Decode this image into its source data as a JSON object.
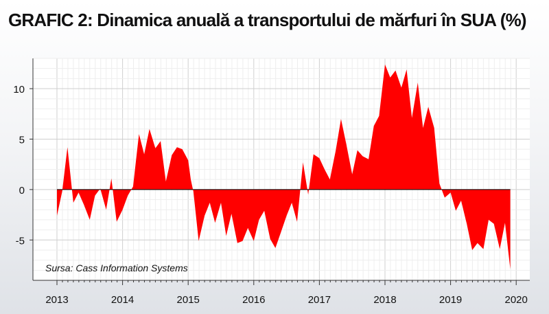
{
  "title": "GRAFIC 2: Dinamica anuală a transportului de mărfuri în SUA (%)",
  "source_note": "Sursa: Cass Information Systems",
  "chart_data": {
    "type": "area",
    "title": "GRAFIC 2: Dinamica anuală a transportului de mărfuri în SUA (%)",
    "xlabel": "",
    "ylabel": "",
    "x_tick_labels": [
      "2013",
      "2014",
      "2015",
      "2016",
      "2017",
      "2018",
      "2019",
      "2020"
    ],
    "y_tick_labels": [
      "10",
      "5",
      "0",
      "-5"
    ],
    "y_ticks": [
      10,
      5,
      0,
      -5
    ],
    "xlim": [
      2013,
      2020
    ],
    "ylim": [
      -9,
      13
    ],
    "grid": true,
    "legend": "none",
    "fill_color": "#ff0000",
    "series": [
      {
        "values": [
          [
            2013.0,
            -2.6
          ],
          [
            2013.08,
            -0.2
          ],
          [
            2013.16,
            4.2
          ],
          [
            2013.25,
            -1.3
          ],
          [
            2013.33,
            -0.3
          ],
          [
            2013.41,
            -1.5
          ],
          [
            2013.5,
            -3.0
          ],
          [
            2013.58,
            -0.6
          ],
          [
            2013.66,
            0.1
          ],
          [
            2013.75,
            -2.0
          ],
          [
            2013.83,
            1.1
          ],
          [
            2013.91,
            -3.2
          ],
          [
            2014.0,
            -2.0
          ],
          [
            2014.08,
            -0.6
          ],
          [
            2014.16,
            0.3
          ],
          [
            2014.25,
            5.5
          ],
          [
            2014.33,
            3.5
          ],
          [
            2014.41,
            6.0
          ],
          [
            2014.5,
            4.1
          ],
          [
            2014.58,
            4.8
          ],
          [
            2014.66,
            0.8
          ],
          [
            2014.75,
            3.4
          ],
          [
            2014.83,
            4.2
          ],
          [
            2014.91,
            4.0
          ],
          [
            2015.0,
            2.9
          ],
          [
            2015.04,
            1.0
          ],
          [
            2015.08,
            -0.2
          ],
          [
            2015.16,
            -5.1
          ],
          [
            2015.25,
            -2.6
          ],
          [
            2015.33,
            -1.3
          ],
          [
            2015.41,
            -3.3
          ],
          [
            2015.5,
            -1.3
          ],
          [
            2015.58,
            -4.6
          ],
          [
            2015.66,
            -2.4
          ],
          [
            2015.75,
            -5.3
          ],
          [
            2015.83,
            -5.1
          ],
          [
            2015.91,
            -3.8
          ],
          [
            2016.0,
            -5.1
          ],
          [
            2016.08,
            -3.0
          ],
          [
            2016.16,
            -2.1
          ],
          [
            2016.25,
            -4.9
          ],
          [
            2016.33,
            -5.8
          ],
          [
            2016.41,
            -4.3
          ],
          [
            2016.5,
            -2.6
          ],
          [
            2016.58,
            -1.3
          ],
          [
            2016.66,
            -3.2
          ],
          [
            2016.75,
            2.7
          ],
          [
            2016.83,
            -0.5
          ],
          [
            2016.91,
            3.5
          ],
          [
            2017.0,
            3.1
          ],
          [
            2017.08,
            2.0
          ],
          [
            2017.16,
            1.0
          ],
          [
            2017.25,
            3.9
          ],
          [
            2017.33,
            7.0
          ],
          [
            2017.41,
            4.5
          ],
          [
            2017.5,
            1.5
          ],
          [
            2017.58,
            3.9
          ],
          [
            2017.66,
            3.3
          ],
          [
            2017.75,
            3.0
          ],
          [
            2017.83,
            6.3
          ],
          [
            2017.91,
            7.3
          ],
          [
            2018.0,
            12.4
          ],
          [
            2018.08,
            11.1
          ],
          [
            2018.16,
            11.8
          ],
          [
            2018.25,
            10.1
          ],
          [
            2018.33,
            11.9
          ],
          [
            2018.41,
            7.1
          ],
          [
            2018.5,
            10.6
          ],
          [
            2018.58,
            6.1
          ],
          [
            2018.66,
            8.2
          ],
          [
            2018.75,
            6.1
          ],
          [
            2018.83,
            0.6
          ],
          [
            2018.91,
            -0.8
          ],
          [
            2019.0,
            -0.3
          ],
          [
            2019.08,
            -2.1
          ],
          [
            2019.16,
            -1.1
          ],
          [
            2019.25,
            -3.5
          ],
          [
            2019.33,
            -6.0
          ],
          [
            2019.41,
            -5.3
          ],
          [
            2019.5,
            -5.9
          ],
          [
            2019.58,
            -3.0
          ],
          [
            2019.66,
            -3.4
          ],
          [
            2019.75,
            -5.9
          ],
          [
            2019.83,
            -3.3
          ],
          [
            2019.91,
            -7.9
          ]
        ]
      }
    ]
  }
}
